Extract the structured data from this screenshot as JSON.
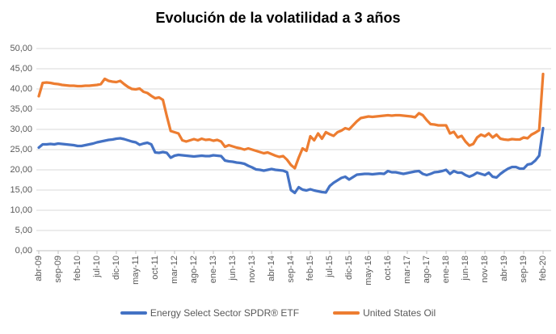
{
  "chart_data": {
    "type": "line",
    "title": "Evolución de la volatilidad a 3 años",
    "xlabel": "",
    "ylabel": "",
    "ylim": [
      0,
      50
    ],
    "y_tick_step": 5,
    "y_tick_labels": [
      "0,00",
      "5,00",
      "10,00",
      "15,00",
      "20,00",
      "25,00",
      "30,00",
      "35,00",
      "40,00",
      "45,00",
      "50,00"
    ],
    "x_tick_interval": 5,
    "x_tick_labels": [
      "abr-09",
      "sep-09",
      "feb-10",
      "jul-10",
      "dic-10",
      "may-11",
      "oct-11",
      "mar-12",
      "ago-12",
      "ene-13",
      "jun-13",
      "nov-13",
      "abr-14",
      "sep-14",
      "feb-15",
      "jul-15",
      "dic-15",
      "may-16",
      "oct-16",
      "mar-17",
      "ago-17",
      "ene-18",
      "jun-18",
      "nov-18",
      "abr-19",
      "sep-19",
      "feb-20"
    ],
    "frequency": "monthly",
    "x_start": "abr-09",
    "x_end": "feb-20",
    "grid": true,
    "legend_position": "bottom",
    "axis_color": "#BFBFBF",
    "gridline_color": "#D9D9D9",
    "series": [
      {
        "name": "Energy Select Sector SPDR® ETF",
        "color": "#4472C4",
        "values": [
          25.5,
          26.3,
          26.3,
          26.4,
          26.3,
          26.5,
          26.4,
          26.3,
          26.2,
          26.1,
          25.9,
          25.9,
          26.1,
          26.3,
          26.5,
          26.8,
          27.0,
          27.2,
          27.4,
          27.5,
          27.7,
          27.8,
          27.6,
          27.3,
          27.0,
          26.8,
          26.2,
          26.5,
          26.7,
          26.3,
          24.3,
          24.2,
          24.4,
          24.2,
          23.0,
          23.5,
          23.7,
          23.6,
          23.5,
          23.4,
          23.3,
          23.4,
          23.5,
          23.4,
          23.4,
          23.6,
          23.5,
          23.4,
          22.3,
          22.1,
          22.0,
          21.8,
          21.7,
          21.5,
          21.0,
          20.6,
          20.1,
          20.0,
          19.8,
          20.0,
          20.2,
          20.0,
          19.9,
          19.8,
          19.4,
          15.0,
          14.3,
          15.7,
          15.1,
          14.9,
          15.2,
          14.9,
          14.7,
          14.5,
          14.4,
          16.0,
          16.8,
          17.4,
          18.0,
          18.3,
          17.6,
          18.2,
          18.8,
          18.9,
          19.0,
          19.0,
          18.9,
          19.0,
          19.1,
          19.0,
          19.7,
          19.4,
          19.4,
          19.2,
          19.0,
          19.2,
          19.4,
          19.6,
          19.7,
          19.0,
          18.7,
          19.0,
          19.4,
          19.5,
          19.7,
          20.0,
          19.0,
          19.7,
          19.3,
          19.3,
          18.7,
          18.3,
          18.7,
          19.3,
          19.0,
          18.7,
          19.3,
          18.3,
          18.1,
          19.0,
          19.7,
          20.3,
          20.7,
          20.7,
          20.3,
          20.3,
          21.3,
          21.5,
          22.3,
          23.5,
          30.3
        ]
      },
      {
        "name": "United States Oil",
        "color": "#ED7D31",
        "values": [
          38.2,
          41.5,
          41.6,
          41.5,
          41.3,
          41.2,
          41.0,
          40.9,
          40.8,
          40.8,
          40.7,
          40.7,
          40.8,
          40.8,
          40.9,
          41.0,
          41.2,
          42.5,
          42.0,
          41.8,
          41.7,
          42.0,
          41.2,
          40.5,
          40.0,
          39.9,
          40.1,
          39.3,
          39.0,
          38.3,
          37.7,
          37.9,
          37.3,
          33.3,
          29.6,
          29.3,
          29.0,
          27.3,
          27.0,
          27.3,
          27.6,
          27.3,
          27.7,
          27.4,
          27.5,
          27.2,
          27.4,
          27.0,
          25.7,
          26.1,
          25.8,
          25.5,
          25.3,
          25.0,
          25.3,
          25.0,
          24.7,
          24.4,
          24.1,
          24.3,
          23.9,
          23.5,
          23.2,
          23.4,
          22.5,
          21.2,
          20.4,
          23.0,
          25.3,
          24.7,
          28.3,
          27.3,
          29.0,
          27.7,
          29.3,
          28.8,
          28.4,
          29.3,
          29.7,
          30.3,
          30.0,
          31.0,
          32.0,
          32.8,
          33.0,
          33.2,
          33.1,
          33.2,
          33.3,
          33.4,
          33.5,
          33.4,
          33.5,
          33.5,
          33.4,
          33.3,
          33.2,
          33.0,
          34.0,
          33.5,
          32.3,
          31.3,
          31.2,
          31.0,
          31.0,
          31.0,
          29.0,
          29.4,
          28.0,
          28.4,
          27.0,
          26.0,
          26.4,
          28.0,
          28.7,
          28.3,
          29.0,
          28.0,
          28.7,
          27.7,
          27.5,
          27.4,
          27.6,
          27.5,
          27.5,
          28.0,
          27.8,
          28.7,
          29.2,
          29.8,
          43.7
        ]
      }
    ]
  }
}
